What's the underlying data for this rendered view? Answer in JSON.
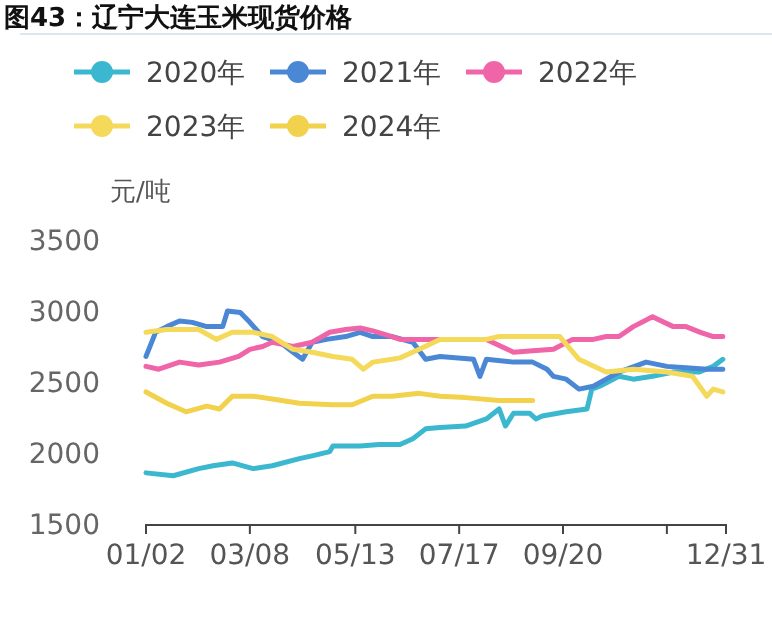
{
  "chart_data": {
    "type": "line",
    "title": "图43：辽宁大连玉米现货价格",
    "ylabel": "元/吨",
    "legend": "top",
    "ylim": [
      1500,
      3500
    ],
    "yticks": [
      1500,
      2000,
      2500,
      3000,
      3500
    ],
    "xlim": [
      "--01-02",
      "--12-31"
    ],
    "xticks": [
      {
        "value": "--01-02",
        "label": "01/02"
      },
      {
        "value": "--03-08",
        "label": "03/08"
      },
      {
        "value": "--05-13",
        "label": "05/13"
      },
      {
        "value": "--07-17",
        "label": "07/17"
      },
      {
        "value": "--09-20",
        "label": "09/20"
      },
      {
        "value": "--11-24",
        "label": null
      },
      {
        "value": "--12-31",
        "label": "12/31"
      }
    ],
    "series": [
      {
        "name": "2020年",
        "color": "#3bb8cf",
        "x": [
          "--01-02",
          "--01-19",
          "--02-04",
          "--02-13",
          "--02-25",
          "--03-10",
          "--03-22",
          "--04-08",
          "--04-16",
          "--04-27",
          "--04-29",
          "--05-16",
          "--05-28",
          "--06-10",
          "--06-18",
          "--06-26",
          "--07-05",
          "--07-21",
          "--08-03",
          "--08-11",
          "--08-15",
          "--08-20",
          "--08-30",
          "--09-03",
          "--09-07",
          "--09-22",
          "--10-05",
          "--10-08",
          "--10-13",
          "--10-25",
          "--11-03",
          "--11-15",
          "--11-28",
          "--12-14",
          "--12-23",
          "--12-29"
        ],
        "values": [
          1860,
          1840,
          1890,
          1910,
          1930,
          1890,
          1910,
          1960,
          1980,
          2010,
          2050,
          2050,
          2060,
          2060,
          2100,
          2170,
          2180,
          2190,
          2240,
          2310,
          2190,
          2280,
          2280,
          2240,
          2260,
          2290,
          2310,
          2450,
          2470,
          2540,
          2520,
          2540,
          2570,
          2570,
          2610,
          2660
        ]
      },
      {
        "name": "2021年",
        "color": "#4a88d6",
        "x": [
          "--01-02",
          "--01-08",
          "--01-15",
          "--01-23",
          "--01-31",
          "--02-09",
          "--02-19",
          "--02-22",
          "--03-02",
          "--03-08",
          "--03-16",
          "--03-27",
          "--04-04",
          "--04-10",
          "--04-16",
          "--04-25",
          "--05-07",
          "--05-16",
          "--05-24",
          "--06-05",
          "--06-18",
          "--06-26",
          "--07-05",
          "--07-26",
          "--07-30",
          "--08-03",
          "--08-20",
          "--09-01",
          "--09-10",
          "--09-14",
          "--09-22",
          "--09-30",
          "--10-09",
          "--10-17",
          "--10-25",
          "--11-11",
          "--11-24",
          "--12-06",
          "--12-19",
          "--12-29"
        ],
        "values": [
          2680,
          2850,
          2890,
          2930,
          2920,
          2890,
          2890,
          3000,
          2990,
          2920,
          2820,
          2780,
          2710,
          2660,
          2780,
          2800,
          2820,
          2850,
          2820,
          2820,
          2780,
          2660,
          2680,
          2660,
          2540,
          2660,
          2640,
          2640,
          2590,
          2540,
          2520,
          2450,
          2470,
          2520,
          2570,
          2640,
          2610,
          2600,
          2590,
          2590
        ]
      },
      {
        "name": "2022年",
        "color": "#f064a8",
        "x": [
          "--01-02",
          "--01-10",
          "--01-23",
          "--02-04",
          "--02-17",
          "--03-01",
          "--03-08",
          "--03-16",
          "--03-22",
          "--04-04",
          "--04-16",
          "--04-27",
          "--05-07",
          "--05-16",
          "--05-24",
          "--06-05",
          "--06-10",
          "--07-05",
          "--08-03",
          "--08-20",
          "--09-01",
          "--09-14",
          "--09-26",
          "--10-09",
          "--10-17",
          "--10-25",
          "--11-03",
          "--11-15",
          "--11-28",
          "--12-06",
          "--12-15",
          "--12-23",
          "--12-29"
        ],
        "values": [
          2610,
          2590,
          2640,
          2620,
          2640,
          2680,
          2730,
          2750,
          2780,
          2750,
          2780,
          2850,
          2870,
          2880,
          2860,
          2820,
          2800,
          2800,
          2800,
          2710,
          2720,
          2730,
          2800,
          2800,
          2820,
          2820,
          2890,
          2960,
          2890,
          2890,
          2850,
          2820,
          2820
        ]
      },
      {
        "name": "2023年",
        "color": "#f5d95b",
        "x": [
          "--01-02",
          "--01-15",
          "--01-27",
          "--02-04",
          "--02-15",
          "--02-25",
          "--03-10",
          "--03-22",
          "--04-04",
          "--04-16",
          "--04-29",
          "--05-11",
          "--05-18",
          "--05-24",
          "--06-05",
          "--06-10",
          "--06-22",
          "--07-05",
          "--08-03",
          "--08-11",
          "--09-18",
          "--09-30",
          "--10-17",
          "--11-03",
          "--11-24",
          "--12-10",
          "--12-19",
          "--12-23",
          "--12-29"
        ],
        "values": [
          2850,
          2870,
          2870,
          2870,
          2800,
          2850,
          2850,
          2820,
          2730,
          2710,
          2680,
          2660,
          2590,
          2640,
          2660,
          2670,
          2730,
          2800,
          2800,
          2820,
          2820,
          2660,
          2570,
          2590,
          2570,
          2540,
          2400,
          2450,
          2430
        ]
      },
      {
        "name": "2024年",
        "color": "#f2d14c",
        "x": [
          "--01-02",
          "--01-15",
          "--01-27",
          "--02-09",
          "--02-17",
          "--02-25",
          "--03-10",
          "--03-22",
          "--04-08",
          "--04-29",
          "--05-11",
          "--05-24",
          "--06-05",
          "--06-22",
          "--07-05",
          "--07-21",
          "--08-11",
          "--09-01"
        ],
        "values": [
          2430,
          2350,
          2290,
          2330,
          2310,
          2400,
          2400,
          2380,
          2350,
          2340,
          2340,
          2400,
          2400,
          2420,
          2400,
          2390,
          2370,
          2370
        ]
      }
    ]
  }
}
